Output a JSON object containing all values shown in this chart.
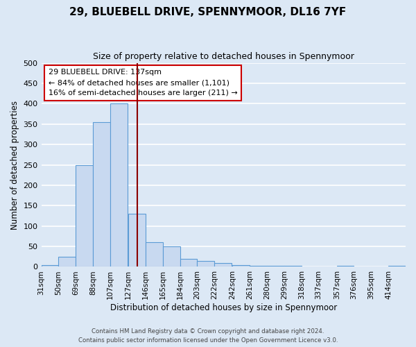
{
  "title": "29, BLUEBELL DRIVE, SPENNYMOOR, DL16 7YF",
  "subtitle": "Size of property relative to detached houses in Spennymoor",
  "xlabel": "Distribution of detached houses by size in Spennymoor",
  "ylabel": "Number of detached properties",
  "bin_labels": [
    "31sqm",
    "50sqm",
    "69sqm",
    "88sqm",
    "107sqm",
    "127sqm",
    "146sqm",
    "165sqm",
    "184sqm",
    "203sqm",
    "222sqm",
    "242sqm",
    "261sqm",
    "280sqm",
    "299sqm",
    "318sqm",
    "337sqm",
    "357sqm",
    "376sqm",
    "395sqm",
    "414sqm"
  ],
  "bin_edges": [
    31,
    50,
    69,
    88,
    107,
    127,
    146,
    165,
    184,
    203,
    222,
    242,
    261,
    280,
    299,
    318,
    337,
    357,
    376,
    395,
    414
  ],
  "bar_heights": [
    5,
    25,
    250,
    355,
    400,
    130,
    60,
    50,
    20,
    15,
    10,
    5,
    2,
    2,
    2,
    0,
    0,
    2,
    0,
    0,
    2
  ],
  "bar_color": "#c8d9f0",
  "bar_edge_color": "#5b9bd5",
  "vline_x": 137,
  "vline_color": "#8b0000",
  "ylim": [
    0,
    500
  ],
  "yticks": [
    0,
    50,
    100,
    150,
    200,
    250,
    300,
    350,
    400,
    450,
    500
  ],
  "annotation_title": "29 BLUEBELL DRIVE: 137sqm",
  "annotation_line1": "← 84% of detached houses are smaller (1,101)",
  "annotation_line2": "16% of semi-detached houses are larger (211) →",
  "annotation_box_color": "#ffffff",
  "annotation_box_edge": "#cc0000",
  "footer1": "Contains HM Land Registry data © Crown copyright and database right 2024.",
  "footer2": "Contains public sector information licensed under the Open Government Licence v3.0.",
  "background_color": "#dce8f5",
  "plot_background": "#dce8f5",
  "grid_color": "#ffffff"
}
